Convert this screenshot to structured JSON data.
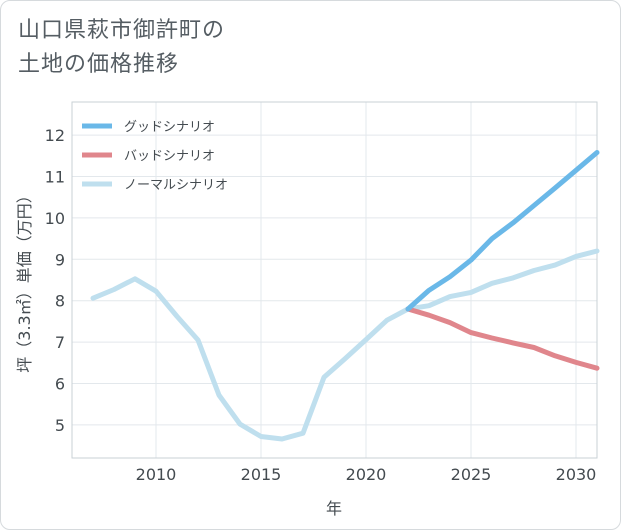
{
  "title_lines": [
    "山口県萩市御許町の",
    "土地の価格推移"
  ],
  "chart_data": {
    "type": "line",
    "title": "山口県萩市御許町の土地の価格推移",
    "xlabel": "年",
    "ylabel": "坪（3.3㎡）単価（万円）",
    "xlim": [
      2006,
      2031
    ],
    "ylim": [
      4.2,
      12.8
    ],
    "x_ticks": [
      2010,
      2015,
      2020,
      2025,
      2030
    ],
    "y_ticks": [
      5,
      6,
      7,
      8,
      9,
      10,
      11,
      12
    ],
    "grid": true,
    "legend_position": "top-left",
    "series": [
      {
        "name": "グッドシナリオ",
        "color": "#6ab8e8",
        "x": [
          2022,
          2023,
          2024,
          2025,
          2026,
          2027,
          2028,
          2029,
          2030,
          2031
        ],
        "y": [
          7.8,
          8.25,
          8.58,
          8.98,
          9.5,
          9.88,
          10.3,
          10.72,
          11.15,
          11.58
        ]
      },
      {
        "name": "バッドシナリオ",
        "color": "#e0868c",
        "x": [
          2022,
          2023,
          2024,
          2025,
          2026,
          2027,
          2028,
          2029,
          2030,
          2031
        ],
        "y": [
          7.8,
          7.65,
          7.47,
          7.23,
          7.1,
          6.98,
          6.87,
          6.67,
          6.51,
          6.37
        ]
      },
      {
        "name": "ノーマルシナリオ",
        "color": "#bfdfee",
        "x": [
          2007,
          2008,
          2009,
          2010,
          2011,
          2012,
          2013,
          2014,
          2015,
          2016,
          2017,
          2018,
          2019,
          2020,
          2021,
          2022,
          2023,
          2024,
          2025,
          2026,
          2027,
          2028,
          2029,
          2030,
          2031
        ],
        "y": [
          8.06,
          8.27,
          8.53,
          8.23,
          7.62,
          7.05,
          5.72,
          5.02,
          4.72,
          4.66,
          4.8,
          6.15,
          6.6,
          7.06,
          7.53,
          7.8,
          7.88,
          8.1,
          8.2,
          8.42,
          8.55,
          8.73,
          8.86,
          9.07,
          9.2
        ]
      }
    ]
  }
}
